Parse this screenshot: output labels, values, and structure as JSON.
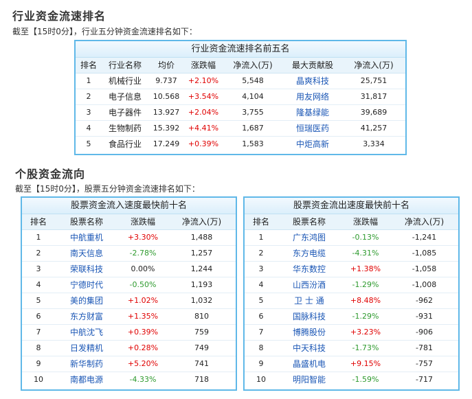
{
  "industry": {
    "heading": "行业资金流速排名",
    "subtitle": "截至【15时0分】，行业五分钟资金流速排名如下：",
    "table_title": "行业资金流速排名前五名",
    "columns": [
      "排名",
      "行业名称",
      "均价",
      "涨跌幅",
      "净流入(万)",
      "最大贡献股",
      "净流入(万)"
    ],
    "rows": [
      {
        "rank": "1",
        "name": "机械行业",
        "price": "9.737",
        "change": "+2.10%",
        "inflow": "5,548",
        "stock": "晶爽科技",
        "stock_inflow": "25,751",
        "dir": "up"
      },
      {
        "rank": "2",
        "name": "电子信息",
        "price": "10.568",
        "change": "+3.54%",
        "inflow": "4,104",
        "stock": "用友网络",
        "stock_inflow": "31,817",
        "dir": "up"
      },
      {
        "rank": "3",
        "name": "电子器件",
        "price": "13.927",
        "change": "+2.04%",
        "inflow": "3,755",
        "stock": "隆基绿能",
        "stock_inflow": "39,689",
        "dir": "up"
      },
      {
        "rank": "4",
        "name": "生物制药",
        "price": "15.392",
        "change": "+4.41%",
        "inflow": "1,687",
        "stock": "恒瑞医药",
        "stock_inflow": "41,257",
        "dir": "up"
      },
      {
        "rank": "5",
        "name": "食品行业",
        "price": "17.249",
        "change": "+0.39%",
        "inflow": "1,583",
        "stock": "中炬高新",
        "stock_inflow": "3,334",
        "dir": "up"
      }
    ]
  },
  "stocks": {
    "heading": "个股资金流向",
    "subtitle": "截至【15时0分】，股票五分钟资金流速排名如下：",
    "inflow": {
      "title": "股票资金流入速度最快前十名",
      "columns": [
        "排名",
        "股票名称",
        "涨跌幅",
        "净流入(万)"
      ],
      "rows": [
        {
          "rank": "1",
          "name": "中航重机",
          "change": "+3.30%",
          "inflow": "1,488",
          "dir": "up"
        },
        {
          "rank": "2",
          "name": "南天信息",
          "change": "-2.78%",
          "inflow": "1,257",
          "dir": "dn"
        },
        {
          "rank": "3",
          "name": "荣联科技",
          "change": "0.00%",
          "inflow": "1,244",
          "dir": "flat"
        },
        {
          "rank": "4",
          "name": "宁德时代",
          "change": "-0.50%",
          "inflow": "1,193",
          "dir": "dn"
        },
        {
          "rank": "5",
          "name": "美的集团",
          "change": "+1.02%",
          "inflow": "1,032",
          "dir": "up"
        },
        {
          "rank": "6",
          "name": "东方财富",
          "change": "+1.35%",
          "inflow": "810",
          "dir": "up"
        },
        {
          "rank": "7",
          "name": "中航沈飞",
          "change": "+0.39%",
          "inflow": "759",
          "dir": "up"
        },
        {
          "rank": "8",
          "name": "日发精机",
          "change": "+0.28%",
          "inflow": "749",
          "dir": "up"
        },
        {
          "rank": "9",
          "name": "新华制药",
          "change": "+5.20%",
          "inflow": "741",
          "dir": "up"
        },
        {
          "rank": "10",
          "name": "南都电源",
          "change": "-4.33%",
          "inflow": "718",
          "dir": "dn"
        }
      ]
    },
    "outflow": {
      "title": "股票资金流出速度最快前十名",
      "columns": [
        "排名",
        "股票名称",
        "涨跌幅",
        "净流入(万)"
      ],
      "rows": [
        {
          "rank": "1",
          "name": "广东鸿图",
          "change": "-0.13%",
          "inflow": "-1,241",
          "dir": "dn"
        },
        {
          "rank": "2",
          "name": "东方电缆",
          "change": "-4.31%",
          "inflow": "-1,085",
          "dir": "dn"
        },
        {
          "rank": "3",
          "name": "华东数控",
          "change": "+1.38%",
          "inflow": "-1,058",
          "dir": "up"
        },
        {
          "rank": "4",
          "name": "山西汾酒",
          "change": "-1.29%",
          "inflow": "-1,008",
          "dir": "dn"
        },
        {
          "rank": "5",
          "name": "卫 士 通",
          "change": "+8.48%",
          "inflow": "-962",
          "dir": "up"
        },
        {
          "rank": "6",
          "name": "国脉科技",
          "change": "-1.29%",
          "inflow": "-931",
          "dir": "dn"
        },
        {
          "rank": "7",
          "name": "博腾股份",
          "change": "+3.23%",
          "inflow": "-906",
          "dir": "up"
        },
        {
          "rank": "8",
          "name": "中天科技",
          "change": "-1.73%",
          "inflow": "-781",
          "dir": "dn"
        },
        {
          "rank": "9",
          "name": "晶盛机电",
          "change": "+9.15%",
          "inflow": "-757",
          "dir": "up"
        },
        {
          "rank": "10",
          "name": "明阳智能",
          "change": "-1.59%",
          "inflow": "-717",
          "dir": "dn"
        }
      ]
    }
  },
  "colors": {
    "border": "#5fb8e8",
    "up": "#e00000",
    "down": "#2e9a2e",
    "link": "#1a56b5"
  }
}
